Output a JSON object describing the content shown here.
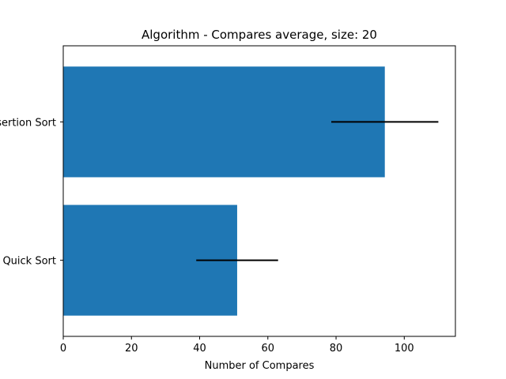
{
  "chart_data": {
    "type": "bar",
    "orientation": "horizontal",
    "title": "Algorithm - Compares average, size: 20",
    "xlabel": "Number of Compares",
    "ylabel": "",
    "categories": [
      "Quick Sort",
      "Insertion Sort"
    ],
    "values": [
      51,
      94.3
    ],
    "error": [
      12,
      15.7
    ],
    "xlim": [
      0,
      115
    ],
    "xticks": [
      0,
      20,
      40,
      60,
      80,
      100
    ],
    "bar_color": "#1f77b4",
    "error_color": "#000000",
    "grid": false,
    "legend": "none"
  }
}
